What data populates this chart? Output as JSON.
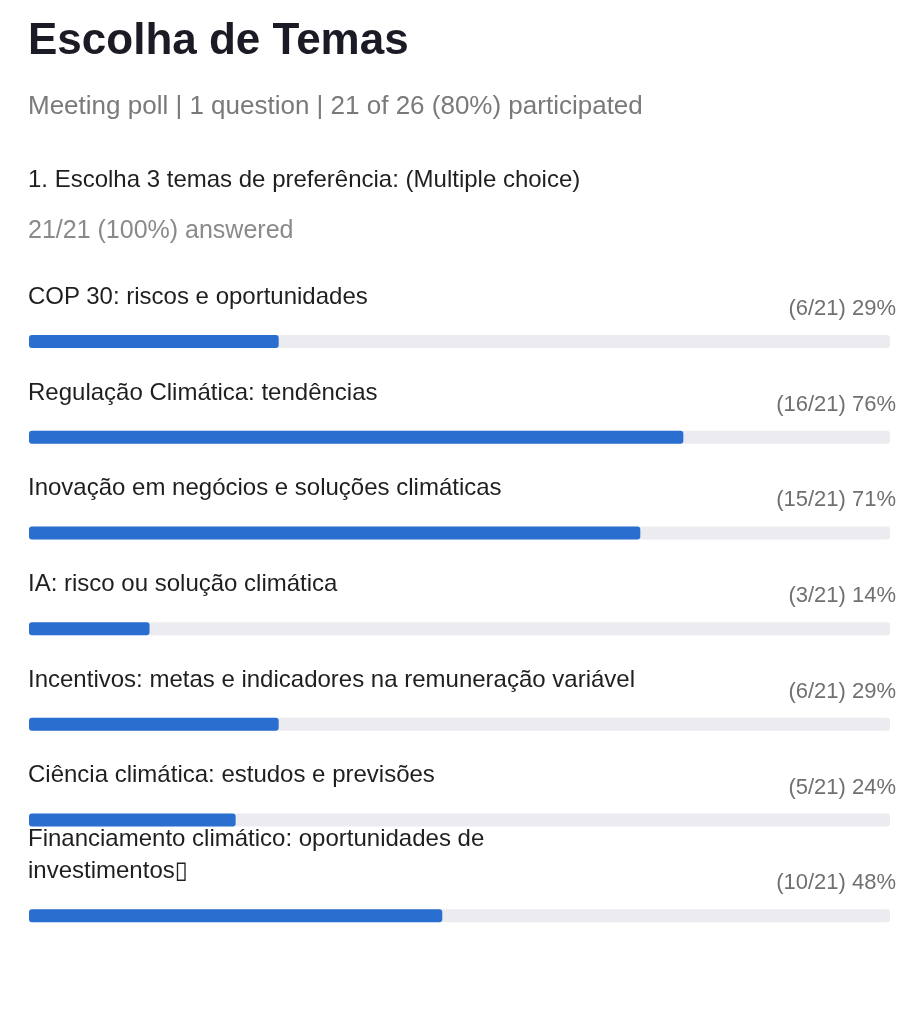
{
  "chart_data": {
    "type": "bar",
    "orientation": "horizontal",
    "title": "Escolha de Temas",
    "subtitle": "Meeting poll | 1 question | 21 of 26 (80%) participated",
    "annotations": [
      "1. Escolha 3 temas de preferência: (Multiple choice)",
      "21/21 (100%) answered"
    ],
    "categories": [
      "COP 30: riscos e oportunidades",
      "Regulação Climática: tendências",
      "Inovação em negócios e soluções climáticas",
      "IA: risco ou solução climática",
      "Incentivos: metas e indicadores na remuneração variável",
      "Ciência climática: estudos e previsões",
      "Financiamento climático: oportunidades de investimentos▯"
    ],
    "values": [
      29,
      76,
      71,
      14,
      29,
      24,
      48
    ],
    "value_labels": [
      "(6/21) 29%",
      "(16/21) 76%",
      "(15/21) 71%",
      "(3/21) 14%",
      "(6/21) 29%",
      "(5/21) 24%",
      "(10/21) 48%"
    ],
    "color": "#2a6fd0",
    "xlim": [
      0,
      100
    ],
    "grid": false,
    "legend": false
  }
}
